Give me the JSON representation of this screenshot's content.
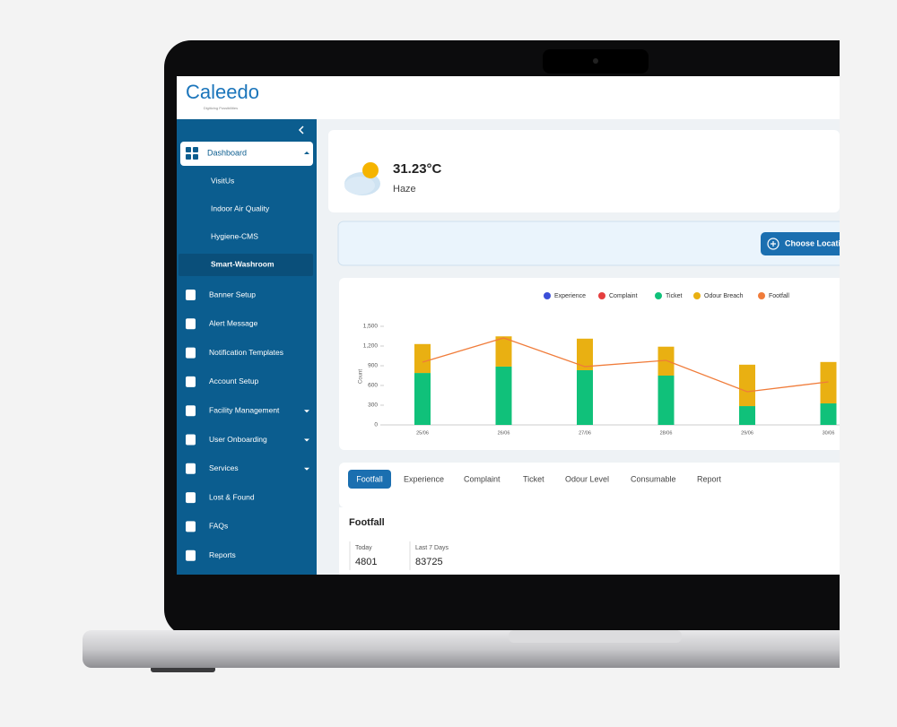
{
  "logo": {
    "name": "Caleedo",
    "tagline": "Digitizing Possibilities"
  },
  "sidebar": {
    "dashboard": "Dashboard",
    "submenu": [
      "VisitUs",
      "Indoor Air Quality",
      "Hygiene-CMS",
      "Smart-Washroom"
    ],
    "menu": [
      "Banner Setup",
      "Alert Message",
      "Notification Templates",
      "Account Setup",
      "Facility Management",
      "User Onboarding",
      "Services",
      "Lost & Found",
      "FAQs",
      "Reports"
    ]
  },
  "weather": {
    "temperature": "31.23°C",
    "condition": "Haze"
  },
  "location_button": "Choose Location",
  "chart": {
    "type": "bar",
    "y_label": "Count",
    "categories": [
      "25/06",
      "26/06",
      "27/06",
      "28/06",
      "29/06",
      "30/06"
    ],
    "ylim": [
      0,
      1500
    ],
    "yticks": [
      0,
      300,
      600,
      900,
      {
        "value": 1200,
        "label": "1,200"
      },
      {
        "value": 1500,
        "label": "1,500"
      }
    ],
    "series": [
      {
        "name": "Experience",
        "color": "#3b4fd8",
        "type": "bar",
        "values": [
          0,
          0,
          0,
          0,
          0,
          0
        ]
      },
      {
        "name": "Complaint",
        "color": "#e53e3e",
        "type": "bar",
        "values": [
          0,
          0,
          0,
          0,
          0,
          0
        ]
      },
      {
        "name": "Ticket",
        "color": "#10c17a",
        "type": "bar",
        "values": [
          790,
          887,
          832,
          750,
          286,
          327
        ]
      },
      {
        "name": "Odour Breach",
        "color": "#e9b012",
        "type": "bar",
        "values": [
          440,
          460,
          480,
          440,
          630,
          630
        ]
      },
      {
        "name": "Footfall",
        "color": "#f07c3a",
        "type": "line",
        "values": [
          955,
          1323,
          887,
          982,
          505,
          655
        ]
      }
    ]
  },
  "tabs": [
    "Footfall",
    "Experience",
    "Complaint",
    "Ticket",
    "Odour Level",
    "Consumable",
    "Report"
  ],
  "section_title": "Footfall",
  "stats": [
    {
      "label": "Today",
      "value": 4801
    },
    {
      "label": "Last 7 Days",
      "value": 83725
    }
  ]
}
